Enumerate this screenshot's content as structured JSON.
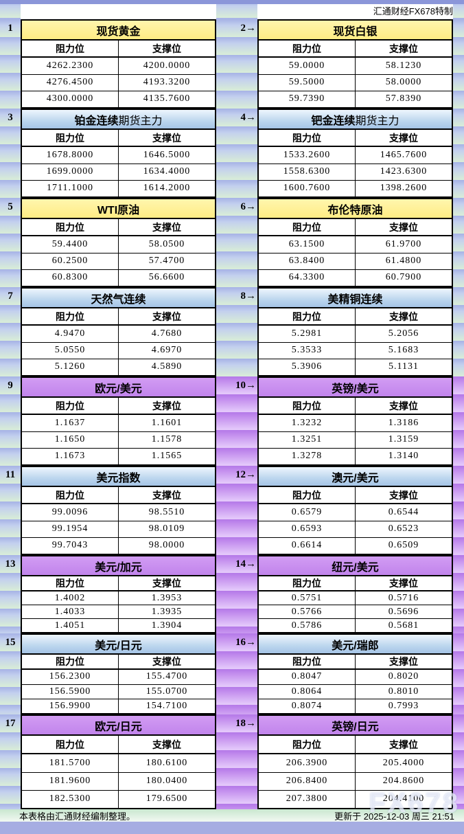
{
  "page": {
    "top_title": "汇通财经FX678特制",
    "footer_left": "本表格由汇通财经编制整理。",
    "footer_right": "更新于 2025-12-03 周三 21:51",
    "watermark": "FX678"
  },
  "columns": {
    "resistance": "阻力位",
    "support": "支撑位"
  },
  "colors": {
    "header_yellow": "#ffef95",
    "header_blue": "#b3cfeb",
    "header_purple": "#c88bef",
    "stripe_blue": "#a6b2e5",
    "stripe_green": "#d8ecda",
    "stripe_purple_dark": "#b478e8",
    "stripe_purple_light": "#e4c9fa",
    "top_bar": "#8b96d9",
    "bottom_bar": "#a6ade2",
    "footer_green": "#c9e6cf"
  },
  "blocks": [
    {
      "label": "1",
      "theme": "yellow",
      "title_bold": "现货黄金",
      "title_rest": "",
      "resistance": [
        "4262.2300",
        "4276.4500",
        "4300.0000"
      ],
      "support": [
        "4200.0000",
        "4193.3200",
        "4135.7600"
      ]
    },
    {
      "label": "2→",
      "theme": "yellow",
      "title_bold": "现货白银",
      "title_rest": "",
      "resistance": [
        "59.0000",
        "59.5000",
        "59.7390"
      ],
      "support": [
        "58.1230",
        "58.0000",
        "57.8390"
      ]
    },
    {
      "label": "3",
      "theme": "blue",
      "title_bold": "铂金连续",
      "title_rest": "期货主力",
      "resistance": [
        "1678.8000",
        "1699.0000",
        "1711.1000"
      ],
      "support": [
        "1646.5000",
        "1634.4000",
        "1614.2000"
      ]
    },
    {
      "label": "4→",
      "theme": "blue",
      "title_bold": "钯金连续",
      "title_rest": "期货主力",
      "resistance": [
        "1533.2600",
        "1558.6300",
        "1600.7600"
      ],
      "support": [
        "1465.7600",
        "1423.6300",
        "1398.2600"
      ]
    },
    {
      "label": "5",
      "theme": "yellow",
      "title_bold": "WTI原油",
      "title_rest": "",
      "resistance": [
        "59.4400",
        "60.2500",
        "60.8300"
      ],
      "support": [
        "58.0500",
        "57.4700",
        "56.6600"
      ]
    },
    {
      "label": "6→",
      "theme": "yellow",
      "title_bold": "布伦特原油",
      "title_rest": "",
      "resistance": [
        "63.1500",
        "63.8400",
        "64.3300"
      ],
      "support": [
        "61.9700",
        "61.4800",
        "60.7900"
      ]
    },
    {
      "label": "7",
      "theme": "blue",
      "title_bold": "天然气连续",
      "title_rest": "",
      "resistance": [
        "4.9470",
        "5.0550",
        "5.1260"
      ],
      "support": [
        "4.7680",
        "4.6970",
        "4.5890"
      ]
    },
    {
      "label": "8→",
      "theme": "blue",
      "title_bold": "美精铜连续",
      "title_rest": "",
      "resistance": [
        "5.2981",
        "5.3533",
        "5.3906"
      ],
      "support": [
        "5.2056",
        "5.1683",
        "5.1131"
      ]
    },
    {
      "label": "9",
      "theme": "purple",
      "title_bold": "欧元/美元",
      "title_rest": "",
      "resistance": [
        "1.1637",
        "1.1650",
        "1.1673"
      ],
      "support": [
        "1.1601",
        "1.1578",
        "1.1565"
      ]
    },
    {
      "label": "10→",
      "theme": "purple",
      "title_bold": "英镑/美元",
      "title_rest": "",
      "resistance": [
        "1.3232",
        "1.3251",
        "1.3278"
      ],
      "support": [
        "1.3186",
        "1.3159",
        "1.3140"
      ]
    },
    {
      "label": "11",
      "theme": "blue",
      "title_bold": "美元指数",
      "title_rest": "",
      "resistance": [
        "99.0096",
        "99.1954",
        "99.7043"
      ],
      "support": [
        "98.5510",
        "98.0109",
        "98.0000"
      ]
    },
    {
      "label": "12→",
      "theme": "blue",
      "title_bold": "澳元/美元",
      "title_rest": "",
      "resistance": [
        "0.6579",
        "0.6593",
        "0.6614"
      ],
      "support": [
        "0.6544",
        "0.6523",
        "0.6509"
      ]
    },
    {
      "label": "13",
      "theme": "purple",
      "title_bold": "美元/加元",
      "title_rest": "",
      "resistance": [
        "1.4002",
        "1.4033",
        "1.4051"
      ],
      "support": [
        "1.3953",
        "1.3935",
        "1.3904"
      ]
    },
    {
      "label": "14→",
      "theme": "purple",
      "title_bold": "纽元/美元",
      "title_rest": "",
      "resistance": [
        "0.5751",
        "0.5766",
        "0.5786"
      ],
      "support": [
        "0.5716",
        "0.5696",
        "0.5681"
      ]
    },
    {
      "label": "15",
      "theme": "blue",
      "title_bold": "美元/日元",
      "title_rest": "",
      "resistance": [
        "156.2300",
        "156.5900",
        "156.9900"
      ],
      "support": [
        "155.4700",
        "155.0700",
        "154.7100"
      ]
    },
    {
      "label": "16→",
      "theme": "blue",
      "title_bold": "美元/瑞郎",
      "title_rest": "",
      "resistance": [
        "0.8047",
        "0.8064",
        "0.8074"
      ],
      "support": [
        "0.8020",
        "0.8010",
        "0.7993"
      ]
    },
    {
      "label": "17",
      "theme": "purple",
      "title_bold": "欧元/日元",
      "title_rest": "",
      "resistance": [
        "181.5700",
        "181.9600",
        "182.5300"
      ],
      "support": [
        "180.6100",
        "180.0400",
        "179.6500"
      ]
    },
    {
      "label": "18→",
      "theme": "purple",
      "title_bold": "英镑/日元",
      "title_rest": "",
      "resistance": [
        "206.3900",
        "206.8400",
        "207.3800"
      ],
      "support": [
        "205.4000",
        "204.8600",
        "204.4100"
      ]
    }
  ]
}
